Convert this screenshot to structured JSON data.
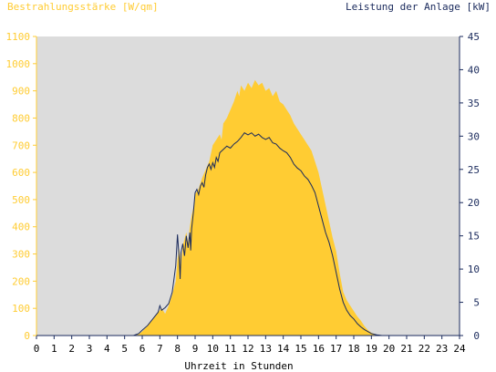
{
  "chart_data": {
    "type": "area",
    "ylabel_left": "Bestrahlungsstärke [W/qm]",
    "ylabel_right": "Leistung der Anlage [kW]",
    "xlabel": "Uhrzeit in Stunden",
    "xlim": [
      0,
      24
    ],
    "ylim_left": [
      0,
      1100
    ],
    "ylim_right": [
      0,
      45
    ],
    "x_ticks": [
      "0",
      "1",
      "2",
      "3",
      "4",
      "5",
      "6",
      "7",
      "8",
      "9",
      "10",
      "11",
      "12",
      "13",
      "14",
      "15",
      "16",
      "17",
      "18",
      "19",
      "20",
      "21",
      "22",
      "23",
      "24"
    ],
    "y_ticks_left": [
      "0",
      "100",
      "200",
      "300",
      "400",
      "500",
      "600",
      "700",
      "800",
      "900",
      "1000",
      "1100"
    ],
    "y_ticks_right": [
      "0",
      "5",
      "10",
      "15",
      "20",
      "25",
      "30",
      "35",
      "40",
      "45"
    ],
    "grid": false,
    "colors": {
      "plot_background": "#dcdcdc",
      "irradiance_fill": "#ffcc33",
      "power_line": "#1a2a5c",
      "left_axis": "#ffcc33",
      "right_axis": "#1a2a5c"
    },
    "series": [
      {
        "name": "Bestrahlungsstärke [W/qm]",
        "axis": "left",
        "style": "area",
        "points": [
          [
            0,
            0
          ],
          [
            5.5,
            0
          ],
          [
            5.8,
            5
          ],
          [
            6.0,
            15
          ],
          [
            6.3,
            35
          ],
          [
            6.6,
            60
          ],
          [
            6.9,
            85
          ],
          [
            7.1,
            100
          ],
          [
            7.3,
            80
          ],
          [
            7.5,
            110
          ],
          [
            7.7,
            150
          ],
          [
            7.9,
            200
          ],
          [
            8.0,
            280
          ],
          [
            8.1,
            320
          ],
          [
            8.2,
            260
          ],
          [
            8.3,
            330
          ],
          [
            8.5,
            380
          ],
          [
            8.6,
            340
          ],
          [
            8.7,
            400
          ],
          [
            8.8,
            440
          ],
          [
            8.9,
            470
          ],
          [
            9.0,
            520
          ],
          [
            9.2,
            540
          ],
          [
            9.4,
            580
          ],
          [
            9.6,
            610
          ],
          [
            9.8,
            640
          ],
          [
            10.0,
            700
          ],
          [
            10.2,
            720
          ],
          [
            10.4,
            740
          ],
          [
            10.5,
            720
          ],
          [
            10.6,
            780
          ],
          [
            10.8,
            800
          ],
          [
            11.0,
            830
          ],
          [
            11.2,
            860
          ],
          [
            11.4,
            900
          ],
          [
            11.5,
            880
          ],
          [
            11.6,
            920
          ],
          [
            11.8,
            900
          ],
          [
            12.0,
            930
          ],
          [
            12.2,
            910
          ],
          [
            12.4,
            940
          ],
          [
            12.6,
            920
          ],
          [
            12.8,
            930
          ],
          [
            13.0,
            900
          ],
          [
            13.2,
            910
          ],
          [
            13.4,
            880
          ],
          [
            13.6,
            900
          ],
          [
            13.8,
            860
          ],
          [
            14.0,
            850
          ],
          [
            14.2,
            830
          ],
          [
            14.4,
            810
          ],
          [
            14.6,
            780
          ],
          [
            14.8,
            760
          ],
          [
            15.0,
            740
          ],
          [
            15.2,
            720
          ],
          [
            15.4,
            700
          ],
          [
            15.6,
            680
          ],
          [
            15.8,
            640
          ],
          [
            16.0,
            600
          ],
          [
            16.2,
            540
          ],
          [
            16.4,
            480
          ],
          [
            16.6,
            420
          ],
          [
            16.8,
            360
          ],
          [
            17.0,
            310
          ],
          [
            17.2,
            230
          ],
          [
            17.4,
            160
          ],
          [
            17.6,
            130
          ],
          [
            17.8,
            110
          ],
          [
            18.0,
            90
          ],
          [
            18.2,
            70
          ],
          [
            18.4,
            55
          ],
          [
            18.6,
            35
          ],
          [
            18.8,
            20
          ],
          [
            19.0,
            10
          ],
          [
            19.3,
            3
          ],
          [
            19.6,
            0
          ],
          [
            24,
            0
          ]
        ]
      },
      {
        "name": "Leistung der Anlage [kW]",
        "axis": "right",
        "style": "line",
        "points": [
          [
            0,
            0
          ],
          [
            5.5,
            0
          ],
          [
            5.8,
            0.3
          ],
          [
            6.0,
            0.8
          ],
          [
            6.3,
            1.5
          ],
          [
            6.6,
            2.5
          ],
          [
            6.9,
            3.5
          ],
          [
            7.0,
            4.5
          ],
          [
            7.1,
            3.8
          ],
          [
            7.3,
            4.2
          ],
          [
            7.5,
            4.8
          ],
          [
            7.7,
            6.5
          ],
          [
            7.8,
            8.5
          ],
          [
            7.9,
            10.5
          ],
          [
            8.0,
            15.2
          ],
          [
            8.1,
            11.5
          ],
          [
            8.15,
            8.5
          ],
          [
            8.2,
            12.5
          ],
          [
            8.3,
            13.8
          ],
          [
            8.4,
            12.0
          ],
          [
            8.5,
            15.0
          ],
          [
            8.6,
            13.2
          ],
          [
            8.7,
            15.5
          ],
          [
            8.75,
            12.8
          ],
          [
            8.8,
            16.0
          ],
          [
            8.9,
            18.5
          ],
          [
            9.0,
            21.5
          ],
          [
            9.1,
            22.0
          ],
          [
            9.2,
            21.2
          ],
          [
            9.3,
            22.5
          ],
          [
            9.4,
            23.0
          ],
          [
            9.5,
            22.3
          ],
          [
            9.6,
            24.2
          ],
          [
            9.7,
            25.3
          ],
          [
            9.8,
            25.8
          ],
          [
            9.9,
            25.0
          ],
          [
            10.0,
            26.0
          ],
          [
            10.1,
            25.3
          ],
          [
            10.2,
            26.8
          ],
          [
            10.3,
            26.2
          ],
          [
            10.4,
            27.5
          ],
          [
            10.6,
            28.0
          ],
          [
            10.8,
            28.5
          ],
          [
            11.0,
            28.2
          ],
          [
            11.2,
            28.8
          ],
          [
            11.4,
            29.2
          ],
          [
            11.6,
            29.8
          ],
          [
            11.8,
            30.5
          ],
          [
            12.0,
            30.2
          ],
          [
            12.2,
            30.5
          ],
          [
            12.4,
            30.0
          ],
          [
            12.6,
            30.3
          ],
          [
            12.8,
            29.8
          ],
          [
            13.0,
            29.5
          ],
          [
            13.2,
            29.8
          ],
          [
            13.4,
            29.0
          ],
          [
            13.6,
            28.8
          ],
          [
            13.8,
            28.2
          ],
          [
            14.0,
            27.8
          ],
          [
            14.2,
            27.5
          ],
          [
            14.4,
            26.8
          ],
          [
            14.6,
            25.8
          ],
          [
            14.8,
            25.2
          ],
          [
            15.0,
            24.8
          ],
          [
            15.2,
            24.0
          ],
          [
            15.4,
            23.5
          ],
          [
            15.6,
            22.6
          ],
          [
            15.8,
            21.5
          ],
          [
            16.0,
            19.5
          ],
          [
            16.2,
            17.5
          ],
          [
            16.4,
            15.5
          ],
          [
            16.6,
            14.0
          ],
          [
            16.8,
            12.0
          ],
          [
            17.0,
            9.5
          ],
          [
            17.2,
            7.0
          ],
          [
            17.4,
            5.0
          ],
          [
            17.6,
            3.8
          ],
          [
            17.8,
            3.0
          ],
          [
            18.0,
            2.5
          ],
          [
            18.2,
            1.8
          ],
          [
            18.4,
            1.3
          ],
          [
            18.6,
            0.9
          ],
          [
            18.8,
            0.6
          ],
          [
            19.0,
            0.3
          ],
          [
            19.3,
            0.1
          ],
          [
            19.6,
            0
          ],
          [
            24,
            0
          ]
        ]
      }
    ]
  }
}
